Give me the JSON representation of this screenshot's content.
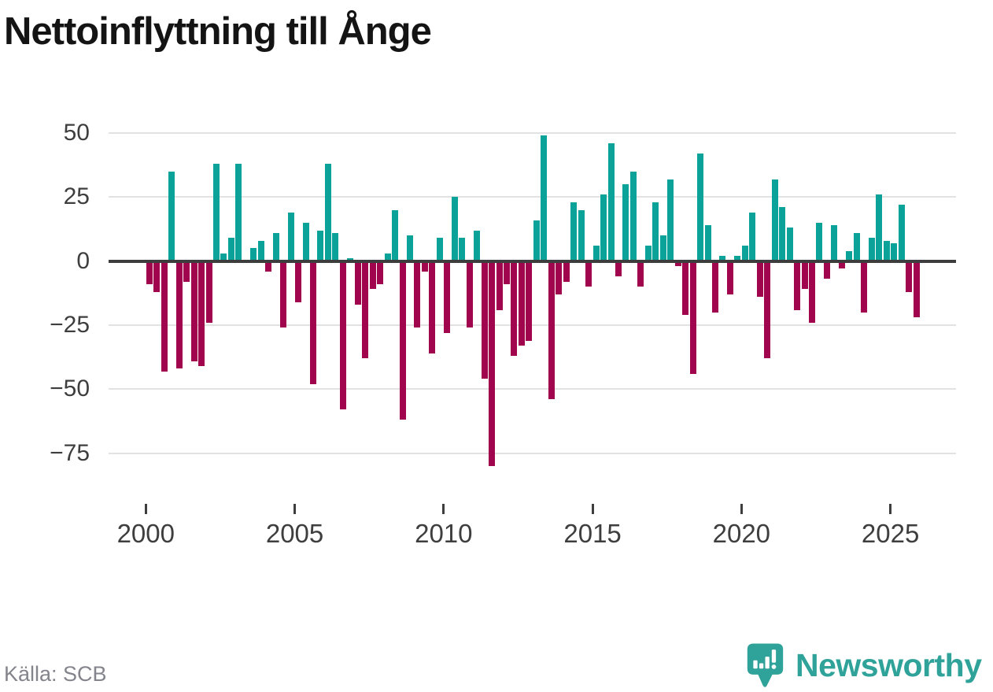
{
  "header": {
    "title": "Nettoinflyttning till Ånge"
  },
  "y_axis": {
    "tick_labels": [
      "50",
      "25",
      "0",
      "−25",
      "−50",
      "−75"
    ],
    "tick_values": [
      50,
      25,
      0,
      -25,
      -50,
      -75
    ]
  },
  "x_axis": {
    "tick_labels": [
      "2000",
      "2005",
      "2010",
      "2015",
      "2020",
      "2025"
    ],
    "tick_values": [
      2000,
      2005,
      2010,
      2015,
      2020,
      2025
    ]
  },
  "footer": {
    "source": "Källa: SCB"
  },
  "logo": {
    "text": "Newsworthy"
  },
  "colors": {
    "positive": "#0ba29a",
    "negative": "#a1054e",
    "zero_line": "#3d3d3d",
    "grid": "#e2e2e2",
    "axis_text": "#3e3e3e",
    "title": "#141414",
    "source_text": "#84848c",
    "logo": "#2fa39a"
  },
  "chart_data": {
    "type": "bar",
    "title": "Nettoinflyttning till Ånge",
    "period": "quarterly",
    "start_year": 2000,
    "end_year": 2025,
    "quarters_per_year": 4,
    "grid": "horizontal",
    "ylim": [
      -87,
      55
    ],
    "yticks": [
      50,
      25,
      0,
      -25,
      -50,
      -75
    ],
    "xticks": [
      2000,
      2005,
      2010,
      2015,
      2020,
      2025
    ],
    "positive_color": "#0ba29a",
    "negative_color": "#a1054e",
    "values": [
      -9,
      -12,
      -43,
      35,
      -42,
      -8,
      -39,
      -41,
      -24,
      38,
      3,
      9,
      38,
      0,
      5,
      8,
      -4,
      11,
      -26,
      19,
      -16,
      15,
      -48,
      12,
      38,
      11,
      -58,
      1,
      -17,
      -38,
      -11,
      -9,
      3,
      20,
      -62,
      10,
      -26,
      -4,
      -36,
      9,
      -28,
      25,
      9,
      -26,
      12,
      -46,
      -80,
      -19,
      -9,
      -37,
      -33,
      -31,
      16,
      49,
      -54,
      -13,
      -8,
      23,
      20,
      -10,
      6,
      26,
      46,
      -6,
      30,
      35,
      -10,
      6,
      23,
      10,
      32,
      -2,
      -21,
      -44,
      42,
      14,
      -20,
      2,
      -13,
      2,
      6,
      19,
      -14,
      -38,
      32,
      21,
      13,
      -19,
      -11,
      -24,
      15,
      -7,
      14,
      -3,
      4,
      11,
      -20,
      9,
      26,
      8,
      7,
      22,
      -12,
      -22
    ]
  }
}
